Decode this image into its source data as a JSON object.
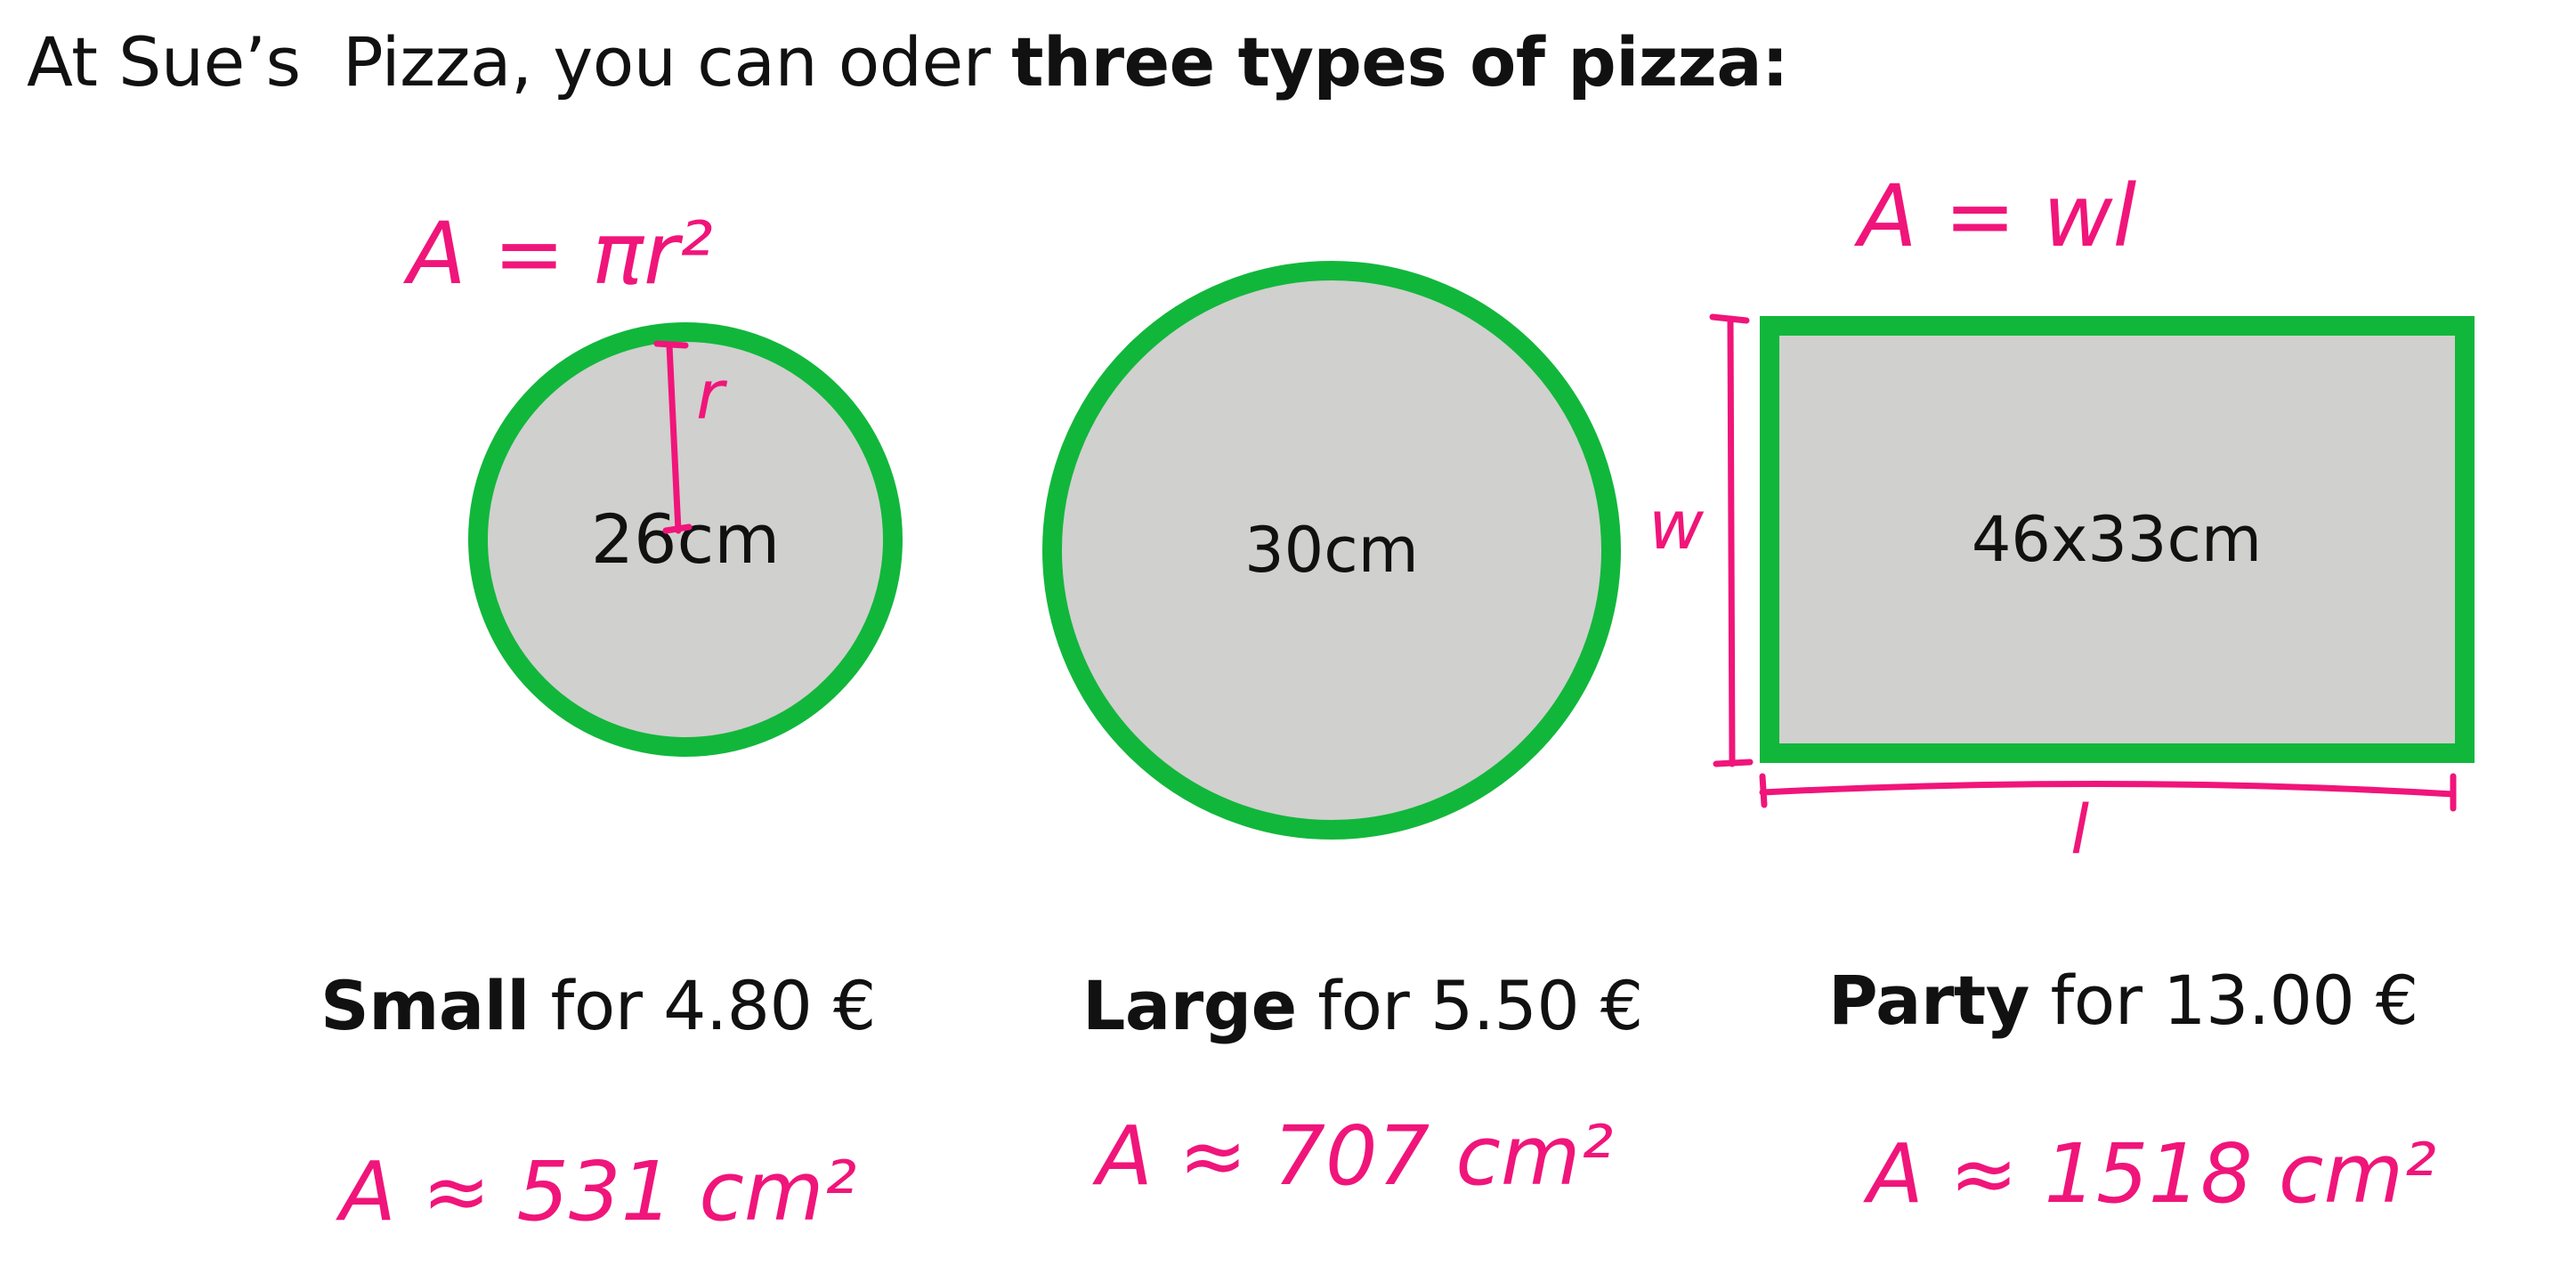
{
  "heading": {
    "prefix": "At Sue’s  Pizza, you can oder ",
    "emphasis": "three types of pizza:"
  },
  "pizzas": [
    {
      "name": "Small",
      "price_text": " for 4.80 €",
      "size_label": "26cm",
      "area_note": "A ≈ 531 cm²"
    },
    {
      "name": "Large",
      "price_text": " for 5.50 €",
      "size_label": "30cm",
      "area_note": "A ≈ 707 cm²"
    },
    {
      "name": "Party",
      "price_text": " for 13.00 €",
      "size_label": "46x33cm",
      "area_note": "A ≈ 1518 cm²"
    }
  ],
  "annotations": {
    "circle_formula": "A = πr²",
    "rect_formula": "A = wl",
    "radius_label": "r",
    "width_label": "w",
    "length_label": "l"
  },
  "colors": {
    "pizza_fill": "#d0d0ce",
    "crust": "#11b73b",
    "ink": "#f0157a",
    "text": "#111111"
  }
}
